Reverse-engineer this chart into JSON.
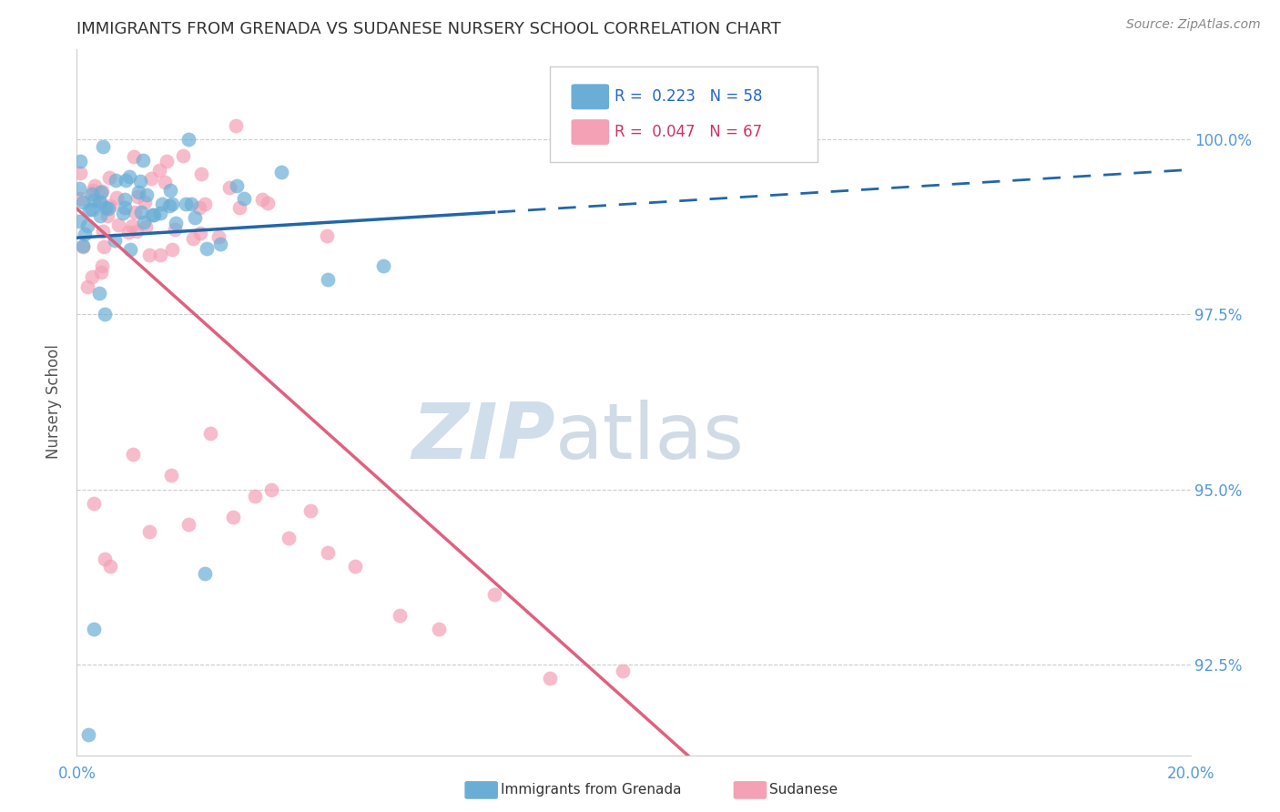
{
  "title": "IMMIGRANTS FROM GRENADA VS SUDANESE NURSERY SCHOOL CORRELATION CHART",
  "source": "Source: ZipAtlas.com",
  "ylabel": "Nursery School",
  "xlim": [
    0.0,
    20.0
  ],
  "ylim": [
    91.2,
    101.3
  ],
  "yticks": [
    92.5,
    95.0,
    97.5,
    100.0
  ],
  "ytick_labels": [
    "92.5%",
    "95.0%",
    "97.5%",
    "100.0%"
  ],
  "blue_color": "#6aaed6",
  "pink_color": "#f4a0b5",
  "blue_line_color": "#2266aa",
  "pink_line_color": "#e06080",
  "legend_blue_r": "R =  0.223",
  "legend_blue_n": "N = 58",
  "legend_pink_r": "R =  0.047",
  "legend_pink_n": "N = 67",
  "watermark_zip": "ZIP",
  "watermark_atlas": "atlas"
}
